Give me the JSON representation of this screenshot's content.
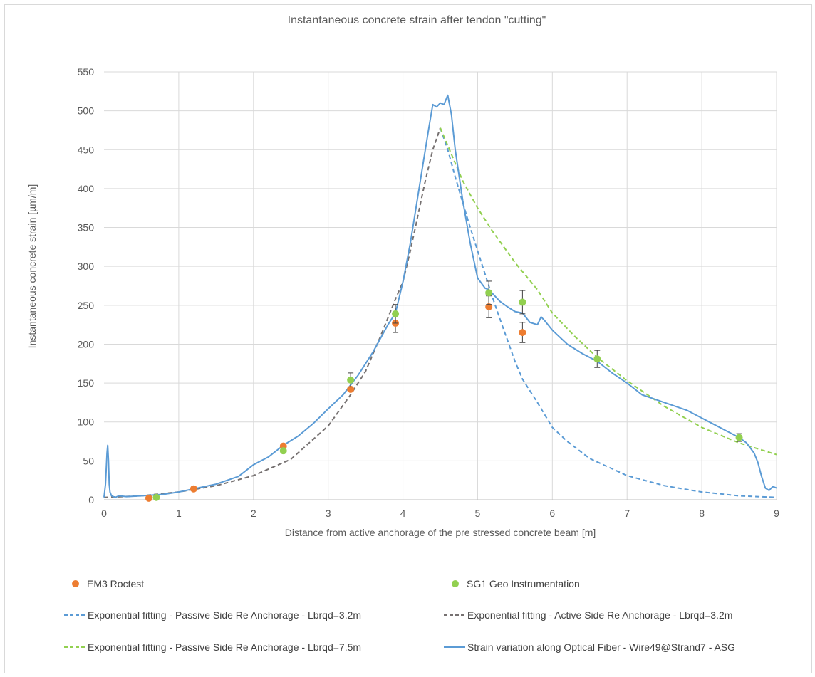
{
  "chart_data": {
    "type": "line",
    "title": "Instantaneous concrete strain after tendon \"cutting\"",
    "xlabel": "Distance from active anchorage of the pre stressed concrete beam [m]",
    "ylabel": "Instantaneous concrete strain [µm/m]",
    "xlim": [
      0,
      9
    ],
    "ylim": [
      0,
      550
    ],
    "xticks": [
      0,
      1,
      2,
      3,
      4,
      5,
      6,
      7,
      8,
      9
    ],
    "yticks": [
      0,
      50,
      100,
      150,
      200,
      250,
      300,
      350,
      400,
      450,
      500,
      550
    ],
    "grid": true,
    "legend_position": "bottom",
    "colors": {
      "em3": "#ed7d31",
      "sg1": "#92d050",
      "passive_3_2": "#5b9bd5",
      "active_3_2": "#767171",
      "passive_7_5": "#92d050",
      "fiber": "#5b9bd5",
      "grid": "#d9d9d9",
      "errorbar": "#404040"
    },
    "series": [
      {
        "name": "EM3 Roctest",
        "kind": "scatter",
        "color_key": "em3",
        "points": [
          {
            "x": 0.6,
            "y": 2
          },
          {
            "x": 1.2,
            "y": 14
          },
          {
            "x": 2.4,
            "y": 69
          },
          {
            "x": 3.3,
            "y": 142
          },
          {
            "x": 3.9,
            "y": 227,
            "err": 12
          },
          {
            "x": 5.15,
            "y": 248,
            "err": 14
          },
          {
            "x": 5.6,
            "y": 215,
            "err": 13
          }
        ]
      },
      {
        "name": "SG1 Geo Instrumentation",
        "kind": "scatter",
        "color_key": "sg1",
        "points": [
          {
            "x": 0.7,
            "y": 3
          },
          {
            "x": 2.4,
            "y": 63
          },
          {
            "x": 3.3,
            "y": 154,
            "err": 9
          },
          {
            "x": 3.9,
            "y": 239,
            "err": 12
          },
          {
            "x": 5.15,
            "y": 266,
            "err": 15
          },
          {
            "x": 5.6,
            "y": 254,
            "err": 15
          },
          {
            "x": 6.6,
            "y": 181,
            "err": 11
          },
          {
            "x": 8.5,
            "y": 80,
            "err": 5
          }
        ]
      },
      {
        "name": "Exponential fitting - Passive Side Re Anchorage - Lbrqd=3.2m",
        "kind": "dashed",
        "color_key": "passive_3_2",
        "x": [
          4.5,
          4.6,
          4.7,
          4.8,
          4.9,
          5.0,
          5.1,
          5.2,
          5.3,
          5.4,
          5.5,
          5.6,
          5.8,
          6.0,
          6.2,
          6.5,
          7.0,
          7.5,
          8.0,
          8.5,
          9.0
        ],
        "y": [
          478,
          450,
          415,
          382,
          350,
          320,
          290,
          260,
          232,
          205,
          178,
          155,
          125,
          93,
          75,
          53,
          31,
          18,
          10,
          5,
          3
        ]
      },
      {
        "name": "Exponential fitting - Active Side Re Anchorage - Lbrqd=3.2m",
        "kind": "dashed",
        "color_key": "active_3_2",
        "x": [
          0.0,
          0.5,
          1.0,
          1.5,
          2.0,
          2.5,
          3.0,
          3.3,
          3.5,
          3.7,
          3.9,
          4.0,
          4.1,
          4.2,
          4.3,
          4.4,
          4.5
        ],
        "y": [
          3,
          5,
          10,
          18,
          31,
          52,
          95,
          135,
          165,
          210,
          258,
          280,
          320,
          365,
          410,
          450,
          478
        ]
      },
      {
        "name": "Exponential fitting - Passive Side Re Anchorage - Lbrqd=7.5m",
        "kind": "dashed",
        "color_key": "passive_7_5",
        "x": [
          4.5,
          4.8,
          5.0,
          5.2,
          5.5,
          5.8,
          6.0,
          6.3,
          6.6,
          7.0,
          7.5,
          8.0,
          8.5,
          9.0
        ],
        "y": [
          478,
          410,
          375,
          345,
          305,
          270,
          240,
          210,
          183,
          153,
          120,
          93,
          73,
          58
        ]
      },
      {
        "name": "Strain variation along Optical Fiber - Wire49@Strand7 - ASG",
        "kind": "line",
        "color_key": "fiber",
        "x": [
          0.0,
          0.02,
          0.04,
          0.05,
          0.06,
          0.07,
          0.08,
          0.1,
          0.15,
          0.2,
          0.3,
          0.5,
          0.8,
          1.0,
          1.2,
          1.5,
          1.8,
          2.0,
          2.2,
          2.4,
          2.6,
          2.8,
          3.0,
          3.2,
          3.4,
          3.6,
          3.8,
          3.9,
          4.0,
          4.1,
          4.2,
          4.3,
          4.35,
          4.4,
          4.45,
          4.5,
          4.55,
          4.6,
          4.65,
          4.7,
          4.8,
          4.9,
          5.0,
          5.1,
          5.15,
          5.2,
          5.3,
          5.4,
          5.5,
          5.6,
          5.7,
          5.8,
          5.85,
          5.9,
          6.0,
          6.2,
          6.4,
          6.6,
          6.8,
          7.0,
          7.2,
          7.5,
          7.8,
          8.0,
          8.2,
          8.5,
          8.6,
          8.7,
          8.75,
          8.8,
          8.85,
          8.9,
          8.95,
          9.0
        ],
        "y": [
          3,
          20,
          60,
          70,
          50,
          20,
          10,
          5,
          3,
          5,
          4,
          5,
          7,
          10,
          14,
          20,
          30,
          45,
          55,
          70,
          82,
          98,
          117,
          135,
          160,
          190,
          225,
          240,
          280,
          330,
          390,
          450,
          480,
          508,
          505,
          510,
          508,
          520,
          495,
          450,
          385,
          330,
          285,
          272,
          270,
          265,
          255,
          248,
          242,
          240,
          228,
          225,
          235,
          230,
          218,
          200,
          188,
          178,
          163,
          150,
          135,
          125,
          115,
          105,
          95,
          80,
          73,
          60,
          48,
          30,
          15,
          12,
          17,
          15
        ]
      }
    ]
  }
}
